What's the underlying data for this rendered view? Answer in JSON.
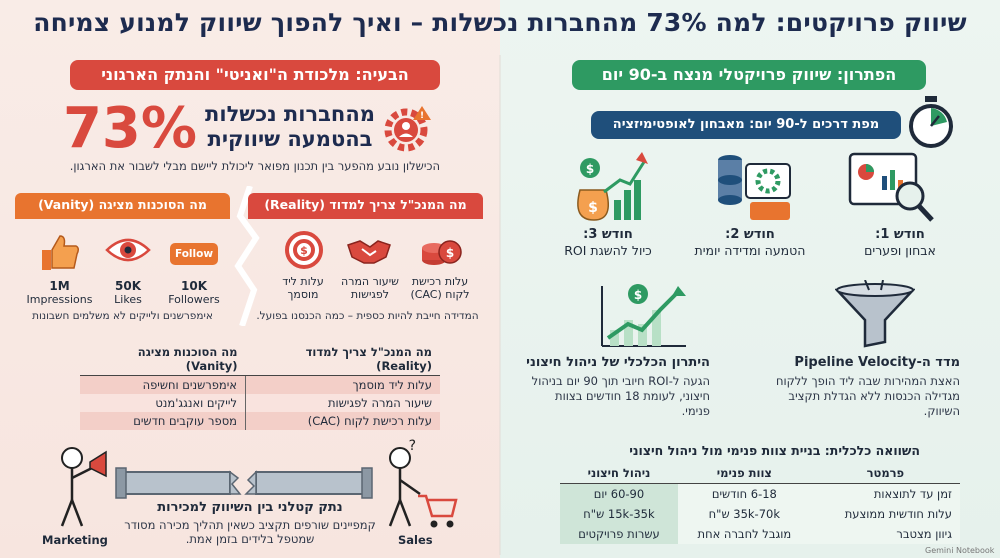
{
  "title": "שיווק פרויקטים: למה 73% מהחברות נכשלות – ואיך להפוך שיווק למנוע צמיחה",
  "problem": {
    "header": "הבעיה: מלכודת ה\"ואניטי\" והנתק הארגוני",
    "stat_value": "73%",
    "stat_text": "מהחברות נכשלות בהטמעה שיווקית",
    "stat_sub": "הכישלון נובע מהפער בין תכנון מפואר ליכולת ליישם מבלי לשבור את הארגון.",
    "reality_tab": "מה המנכ\"ל צריך למדוד (Reality)",
    "vanity_tab": "מה הסוכנות מציגה (Vanity)",
    "reality_metrics": [
      {
        "label": "עלות רכישת לקוח (CAC)"
      },
      {
        "label": "שיעור המרה לפגישות"
      },
      {
        "label": "עלות ליד מוסמך"
      }
    ],
    "reality_note": "המדידה חייבת להיות כספית – כמה הכנסנו בפועל.",
    "vanity_metrics": [
      {
        "value": "1M",
        "label": "Impressions"
      },
      {
        "value": "50K",
        "label": "Likes"
      },
      {
        "value": "10K",
        "label": "Followers"
      }
    ],
    "vanity_badge": "Follow",
    "vanity_note": "אימפרשנים ולייקים לא משלמים חשבונות",
    "table": {
      "headers": [
        "מה המנכ\"ל צריך למדוד (Reality)",
        "מה הסוכנות מציגה (Vanity)"
      ],
      "rows": [
        [
          "עלות ליד מוסמך",
          "אימפרשנים וחשיפה"
        ],
        [
          "שיעור המרה לפגישות",
          "לייקים ואנגג'מנט"
        ],
        [
          "עלות רכישת לקוח (CAC)",
          "מספר עוקבים חדשים"
        ]
      ]
    },
    "gap_title": "נתק קטלני בין השיווק למכירות",
    "gap_text": "קמפיינים שורפים תקציב כשאין תהליך מכירה מסודר שמטפל בלידים בזמן אמת.",
    "label_marketing": "Marketing",
    "label_sales": "Sales"
  },
  "solution": {
    "header": "הפתרון: שיווק פרויקטלי מנצח ב-90 יום",
    "roadmap_title": "מפת דרכים ל-90 יום: מאבחון לאופטימיזציה",
    "steps": [
      {
        "title": "חודש 1:",
        "text": "אבחון ופערים"
      },
      {
        "title": "חודש 2:",
        "text": "הטמעה ומדידה יומית"
      },
      {
        "title": "חודש 3:",
        "text": "כיול להשגת ROI"
      }
    ],
    "velocity_title": "מדד ה-Pipeline Velocity",
    "velocity_text": "האצת המהירות שבה ליד הופך ללקוח מגדילה הכנסות ללא הגדלת תקציב השיווק.",
    "economic_title": "היתרון הכלכלי של ניהול חיצוני",
    "economic_text": "הגעה ל-ROI חיובי תוך 90 יום בניהול חיצוני, לעומת 18 חודשים בצוות פנימי.",
    "comparison_title": "השוואה כלכלית: בניית צוות פנימי מול ניהול חיצוני",
    "comparison": {
      "headers": [
        "פרמטר",
        "צוות פנימי",
        "ניהול חיצוני"
      ],
      "rows": [
        [
          "זמן עד לתוצאות",
          "6-18 חודשים",
          "60-90 יום"
        ],
        [
          "עלות חודשית ממוצעת",
          "35k-70k ש\"ח",
          "15k-35k ש\"ח"
        ],
        [
          "גיוון מצטבר",
          "מוגבל לחברה אחת",
          "עשרות פרויקטים"
        ]
      ]
    },
    "credit": "Gemini Notebook"
  },
  "colors": {
    "red": "#d9493e",
    "green": "#2e9a62",
    "navy": "#1d2b4f",
    "orange": "#e8742f"
  }
}
